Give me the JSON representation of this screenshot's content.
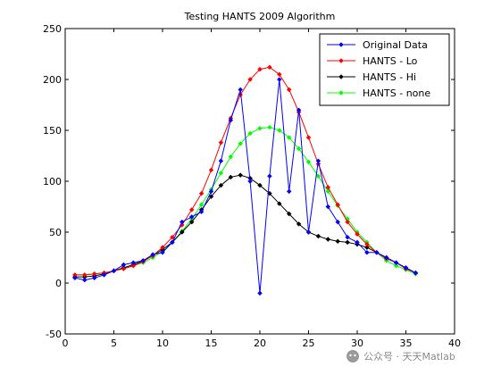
{
  "chart_data": {
    "type": "line",
    "title": "Testing HANTS 2009 Algorithm",
    "xlabel": "",
    "ylabel": "",
    "xlim": [
      0,
      40
    ],
    "ylim": [
      -50,
      250
    ],
    "xticks": [
      0,
      5,
      10,
      15,
      20,
      25,
      30,
      35,
      40
    ],
    "yticks": [
      -50,
      0,
      50,
      100,
      150,
      200,
      250
    ],
    "grid": false,
    "legend_position": "top-right",
    "x": [
      1,
      2,
      3,
      4,
      5,
      6,
      7,
      8,
      9,
      10,
      11,
      12,
      13,
      14,
      15,
      16,
      17,
      18,
      19,
      20,
      21,
      22,
      23,
      24,
      25,
      26,
      27,
      28,
      29,
      30,
      31,
      32,
      33,
      34,
      35,
      36
    ],
    "series": [
      {
        "name": "Original Data",
        "color": "#0000ff",
        "marker": "diamond",
        "values": [
          5,
          3,
          5,
          8,
          12,
          18,
          20,
          22,
          28,
          30,
          40,
          60,
          65,
          70,
          90,
          120,
          160,
          190,
          100,
          -10,
          105,
          200,
          90,
          170,
          50,
          120,
          75,
          60,
          45,
          40,
          30,
          30,
          25,
          20,
          15,
          10
        ]
      },
      {
        "name": "HANTS - Lo",
        "color": "#ff0000",
        "marker": "diamond",
        "values": [
          8,
          8,
          9,
          10,
          12,
          14,
          17,
          21,
          27,
          35,
          45,
          57,
          72,
          88,
          111,
          138,
          162,
          185,
          200,
          210,
          212,
          205,
          190,
          168,
          143,
          117,
          94,
          77,
          60,
          48,
          38,
          30,
          24,
          20,
          14,
          10
        ]
      },
      {
        "name": "HANTS - Hi",
        "color": "#000000",
        "marker": "diamond",
        "values": [
          6,
          6,
          7,
          9,
          12,
          15,
          18,
          22,
          27,
          33,
          40,
          50,
          60,
          72,
          85,
          96,
          104,
          106,
          103,
          96,
          88,
          78,
          68,
          58,
          50,
          46,
          43,
          41,
          40,
          38,
          35,
          30,
          25,
          20,
          15,
          10
        ]
      },
      {
        "name": "HANTS - none",
        "color": "#00ff00",
        "marker": "diamond",
        "values": [
          8,
          8,
          9,
          10,
          12,
          14,
          17,
          20,
          25,
          31,
          40,
          51,
          63,
          77,
          92,
          108,
          124,
          137,
          147,
          152,
          153,
          150,
          143,
          132,
          119,
          105,
          90,
          76,
          63,
          50,
          40,
          30,
          22,
          17,
          13,
          9
        ]
      }
    ]
  },
  "watermark": "公众号 · 天天Matlab"
}
